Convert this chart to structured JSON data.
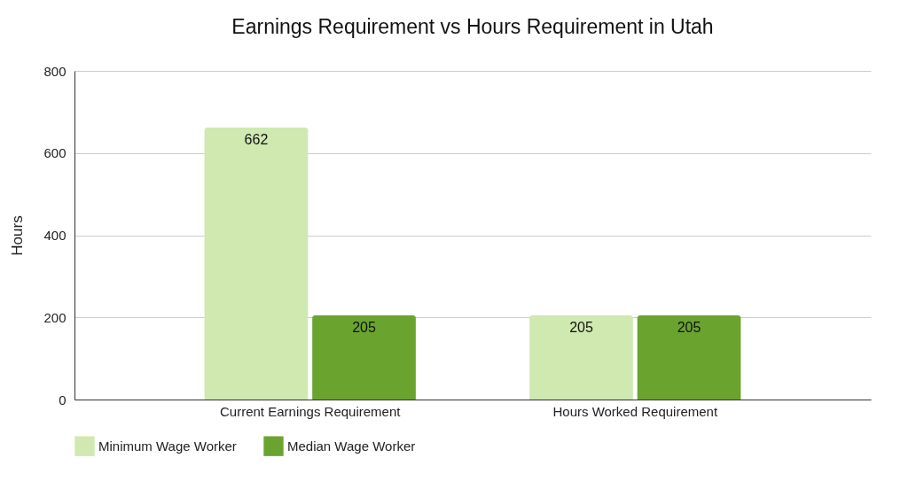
{
  "chart_data": {
    "type": "bar",
    "title": "Earnings Requirement vs Hours Requirement in Utah",
    "ylabel": "Hours",
    "categories": [
      "Current Earnings Requirement",
      "Hours Worked Requirement"
    ],
    "series": [
      {
        "name": "Minimum Wage Worker",
        "color": "#cfe9b0",
        "values": [
          662,
          205
        ]
      },
      {
        "name": "Median Wage Worker",
        "color": "#6aa42f",
        "values": [
          205,
          205
        ]
      }
    ],
    "ylim": [
      0,
      800
    ],
    "yticks": [
      0,
      200,
      400,
      600,
      800
    ],
    "grid": "y",
    "legend": "bottom",
    "data_labels": true
  }
}
